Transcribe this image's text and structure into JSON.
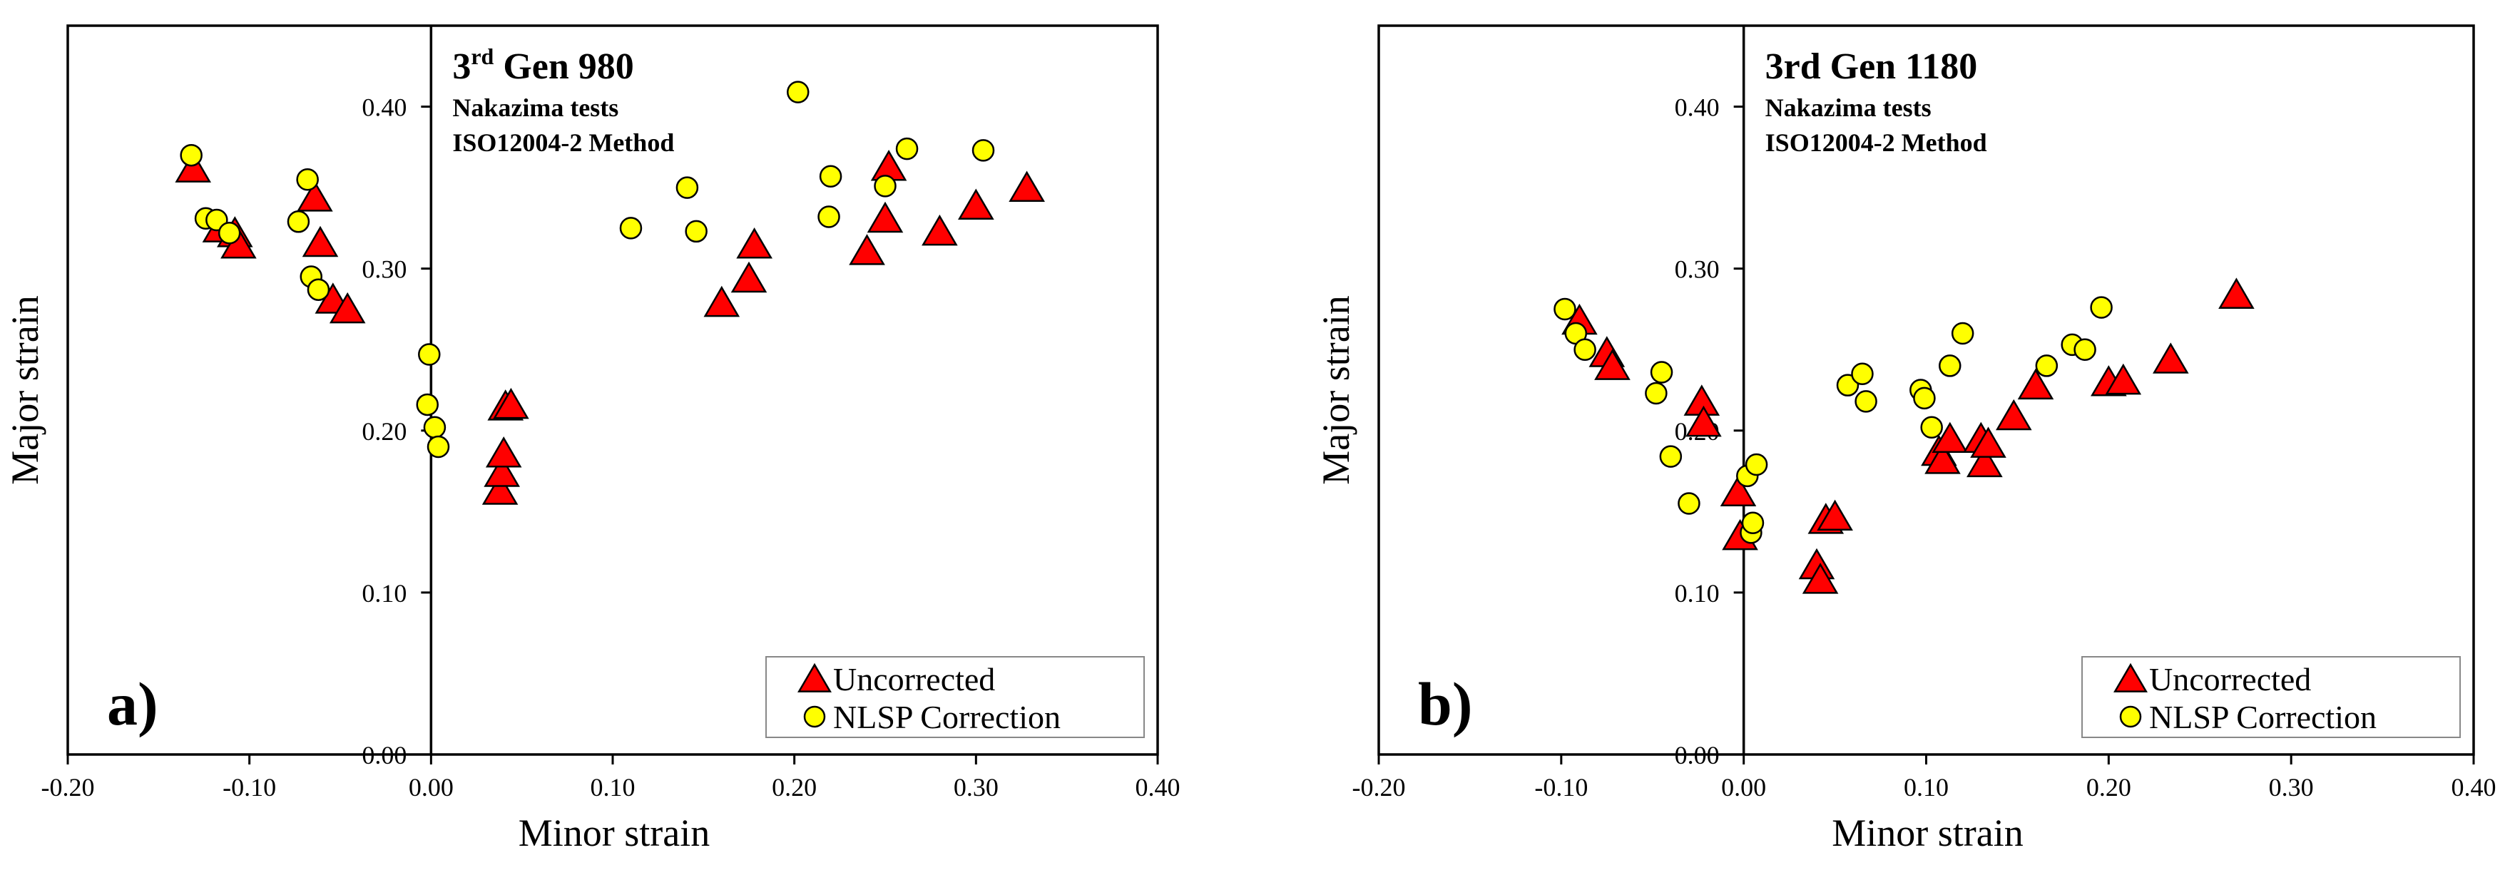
{
  "chart_data": [
    {
      "type": "scatter",
      "panel_label": "a)",
      "title": "3rd Gen 980",
      "title_parts": {
        "prefix": "3",
        "superscript": "rd",
        "suffix": " Gen 980"
      },
      "subtitle_lines": [
        "Nakazima tests",
        "ISO12004-2 Method"
      ],
      "xlabel": "Minor strain",
      "ylabel": "Major strain",
      "xlim": [
        -0.2,
        0.4
      ],
      "ylim": [
        0.0,
        0.45
      ],
      "x_ticks": [
        "-0.20",
        "-0.10",
        "0.00",
        "0.10",
        "0.20",
        "0.30",
        "0.40"
      ],
      "y_ticks": [
        "0.00",
        "0.10",
        "0.20",
        "0.30",
        "0.40"
      ],
      "legend_position": "bottom-right",
      "series": [
        {
          "name": "Uncorrected",
          "marker": "triangle",
          "color": "#ff0000",
          "points": [
            [
              -0.131,
              0.362
            ],
            [
              -0.116,
              0.325
            ],
            [
              -0.108,
              0.322
            ],
            [
              -0.106,
              0.315
            ],
            [
              -0.064,
              0.344
            ],
            [
              -0.061,
              0.316
            ],
            [
              -0.054,
              0.281
            ],
            [
              -0.046,
              0.275
            ],
            [
              0.038,
              0.163
            ],
            [
              0.039,
              0.174
            ],
            [
              0.04,
              0.186
            ],
            [
              0.041,
              0.215
            ],
            [
              0.044,
              0.216
            ],
            [
              0.16,
              0.279
            ],
            [
              0.175,
              0.294
            ],
            [
              0.178,
              0.315
            ],
            [
              0.24,
              0.311
            ],
            [
              0.25,
              0.331
            ],
            [
              0.252,
              0.363
            ],
            [
              0.28,
              0.323
            ],
            [
              0.3,
              0.339
            ],
            [
              0.328,
              0.35
            ]
          ]
        },
        {
          "name": "NLSP Correction",
          "marker": "circle",
          "color": "#ffff00",
          "points": [
            [
              -0.132,
              0.37
            ],
            [
              -0.124,
              0.331
            ],
            [
              -0.118,
              0.33
            ],
            [
              -0.111,
              0.322
            ],
            [
              -0.073,
              0.329
            ],
            [
              -0.068,
              0.355
            ],
            [
              -0.066,
              0.295
            ],
            [
              -0.062,
              0.287
            ],
            [
              -0.001,
              0.247
            ],
            [
              -0.002,
              0.216
            ],
            [
              0.002,
              0.202
            ],
            [
              0.004,
              0.19
            ],
            [
              0.11,
              0.325
            ],
            [
              0.141,
              0.35
            ],
            [
              0.146,
              0.323
            ],
            [
              0.202,
              0.409
            ],
            [
              0.219,
              0.332
            ],
            [
              0.22,
              0.357
            ],
            [
              0.25,
              0.351
            ],
            [
              0.262,
              0.374
            ],
            [
              0.304,
              0.373
            ]
          ]
        }
      ]
    },
    {
      "type": "scatter",
      "panel_label": "b)",
      "title": "3rd Gen 1180",
      "subtitle_lines": [
        "Nakazima tests",
        "ISO12004-2 Method"
      ],
      "xlabel": "Minor strain",
      "ylabel": "Major strain",
      "xlim": [
        -0.2,
        0.4
      ],
      "ylim": [
        0.0,
        0.45
      ],
      "x_ticks": [
        "-0.20",
        "-0.10",
        "0.00",
        "0.10",
        "0.20",
        "0.30",
        "0.40"
      ],
      "y_ticks": [
        "0.00",
        "0.10",
        "0.20",
        "0.30",
        "0.40"
      ],
      "legend_position": "bottom-right",
      "series": [
        {
          "name": "Uncorrected",
          "marker": "triangle",
          "color": "#ff0000",
          "points": [
            [
              -0.09,
              0.268
            ],
            [
              -0.075,
              0.248
            ],
            [
              -0.072,
              0.24
            ],
            [
              -0.023,
              0.218
            ],
            [
              -0.022,
              0.205
            ],
            [
              -0.003,
              0.162
            ],
            [
              -0.002,
              0.135
            ],
            [
              0.04,
              0.117
            ],
            [
              0.042,
              0.108
            ],
            [
              0.045,
              0.145
            ],
            [
              0.05,
              0.147
            ],
            [
              0.107,
              0.187
            ],
            [
              0.109,
              0.182
            ],
            [
              0.113,
              0.195
            ],
            [
              0.13,
              0.195
            ],
            [
              0.132,
              0.18
            ],
            [
              0.134,
              0.192
            ],
            [
              0.148,
              0.209
            ],
            [
              0.16,
              0.228
            ],
            [
              0.2,
              0.23
            ],
            [
              0.208,
              0.231
            ],
            [
              0.234,
              0.244
            ],
            [
              0.27,
              0.284
            ]
          ]
        },
        {
          "name": "NLSP Correction",
          "marker": "circle",
          "color": "#ffff00",
          "points": [
            [
              -0.098,
              0.275
            ],
            [
              -0.092,
              0.26
            ],
            [
              -0.087,
              0.25
            ],
            [
              -0.048,
              0.223
            ],
            [
              -0.045,
              0.236
            ],
            [
              -0.04,
              0.184
            ],
            [
              -0.03,
              0.155
            ],
            [
              0.002,
              0.172
            ],
            [
              0.004,
              0.137
            ],
            [
              0.005,
              0.143
            ],
            [
              0.007,
              0.179
            ],
            [
              0.057,
              0.228
            ],
            [
              0.065,
              0.235
            ],
            [
              0.067,
              0.218
            ],
            [
              0.097,
              0.225
            ],
            [
              0.099,
              0.22
            ],
            [
              0.103,
              0.202
            ],
            [
              0.113,
              0.24
            ],
            [
              0.12,
              0.26
            ],
            [
              0.166,
              0.24
            ],
            [
              0.18,
              0.253
            ],
            [
              0.187,
              0.25
            ],
            [
              0.196,
              0.276
            ]
          ]
        }
      ]
    }
  ]
}
